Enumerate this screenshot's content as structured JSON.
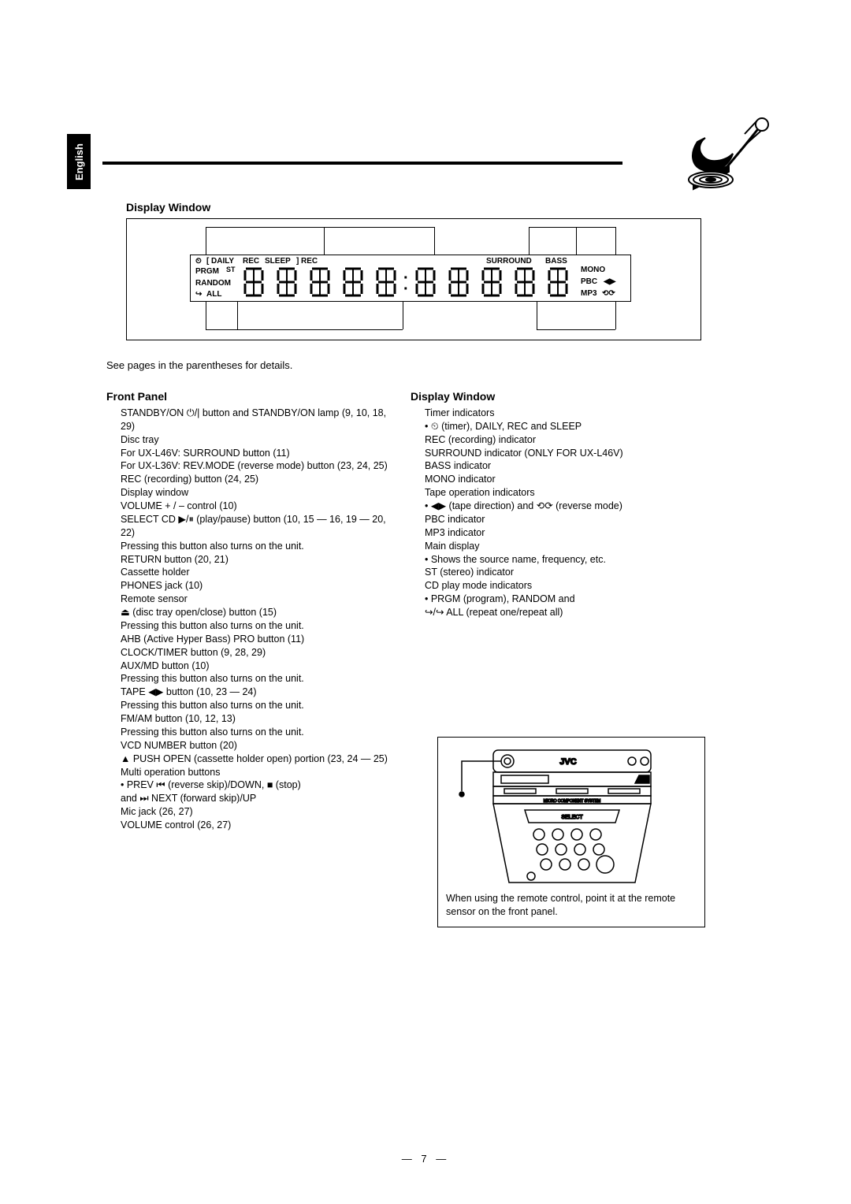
{
  "language_tab": "English",
  "display_window": {
    "title": "Display Window",
    "lcd_labels": {
      "daily": "DAILY",
      "rec": "REC",
      "sleep": "SLEEP",
      "rec2": "REC",
      "surround": "SURROUND",
      "bass": "BASS",
      "prgm": "PRGM",
      "st": "ST",
      "random": "RANDOM",
      "all": "ALL",
      "mono": "MONO",
      "pbc": "PBC",
      "mp3": "MP3"
    }
  },
  "parentheses_note": "See pages in the parentheses for details.",
  "front_panel": {
    "title": "Front Panel",
    "items": [
      "STANDBY/ON ⏻/| button and STANDBY/ON lamp (9, 10, 18, 29)",
      "Disc tray",
      "For UX-L46V: SURROUND button (11)",
      "For UX-L36V: REV.MODE (reverse mode) button (23, 24, 25)",
      "REC (recording) button (24, 25)",
      "Display window",
      "VOLUME + / – control (10)",
      "SELECT CD ▶/⏸ (play/pause) button (10, 15 — 16, 19 — 20, 22)",
      "Pressing this button also turns on the unit.",
      "RETURN button (20, 21)",
      "Cassette holder",
      "PHONES jack (10)",
      "Remote sensor",
      "⏏ (disc tray open/close) button (15)",
      "Pressing this button also turns on the unit.",
      "AHB (Active Hyper Bass) PRO button (11)",
      "CLOCK/TIMER button (9, 28, 29)",
      "AUX/MD button (10)",
      "Pressing this button also turns on the unit.",
      "TAPE ◀▶ button (10, 23 — 24)",
      "Pressing this button also turns on the unit.",
      "FM/AM button (10, 12, 13)",
      "Pressing this button also turns on the unit.",
      "VCD NUMBER button (20)",
      "▲ PUSH OPEN (cassette holder open) portion (23, 24 — 25)",
      "Multi operation buttons",
      "• PREV ⏮ (reverse skip)/DOWN, ■ (stop)",
      "  and ⏭ NEXT (forward skip)/UP",
      "Mic jack (26, 27)",
      "VOLUME control (26, 27)"
    ]
  },
  "display_window_list": {
    "title": "Display Window",
    "items": [
      "Timer indicators",
      "• ⏲ (timer), DAILY, REC and SLEEP",
      "REC (recording) indicator",
      "SURROUND indicator (ONLY FOR UX-L46V)",
      "BASS indicator",
      "MONO indicator",
      "Tape operation indicators",
      "• ◀▶ (tape direction) and ⟲⟳ (reverse mode)",
      "PBC indicator",
      "MP3 indicator",
      "Main display",
      "• Shows the source name, frequency, etc.",
      "ST (stereo) indicator",
      "CD play mode indicators",
      "• PRGM (program), RANDOM and",
      "  ↪/↪ ALL (repeat one/repeat all)"
    ]
  },
  "figure": {
    "brand": "JVC",
    "caption": "When using the remote control, point it at the remote sensor on the front panel."
  },
  "page_number": "— 7 —"
}
